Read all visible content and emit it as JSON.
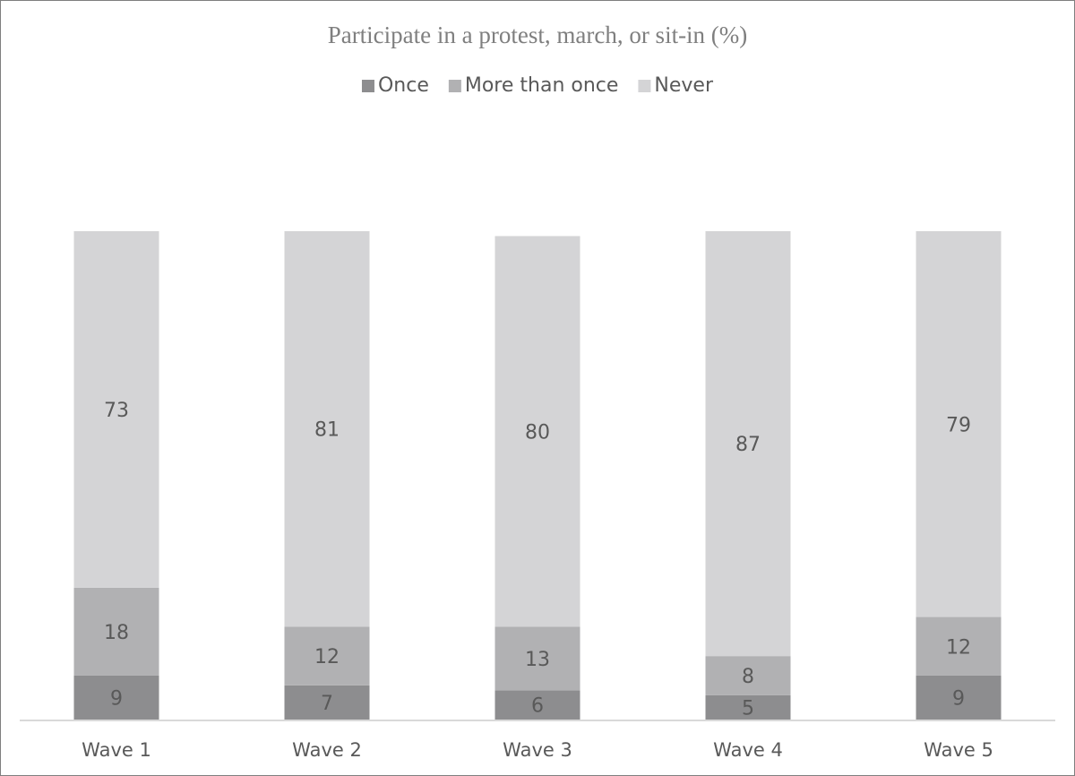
{
  "chart_data": {
    "type": "stacked_bar",
    "title": "Participate  in a protest, march, or sit-in (%)",
    "categories": [
      "Wave 1",
      "Wave 2",
      "Wave 3",
      "Wave 4",
      "Wave 5"
    ],
    "series": [
      {
        "name": "Once",
        "color": "#8d8d8f",
        "values": [
          9,
          7,
          6,
          5,
          9
        ]
      },
      {
        "name": "More than once",
        "color": "#b1b1b3",
        "values": [
          18,
          12,
          13,
          8,
          12
        ]
      },
      {
        "name": "Never",
        "color": "#d4d4d6",
        "values": [
          73,
          81,
          80,
          87,
          79
        ]
      }
    ],
    "legend": "top"
  }
}
